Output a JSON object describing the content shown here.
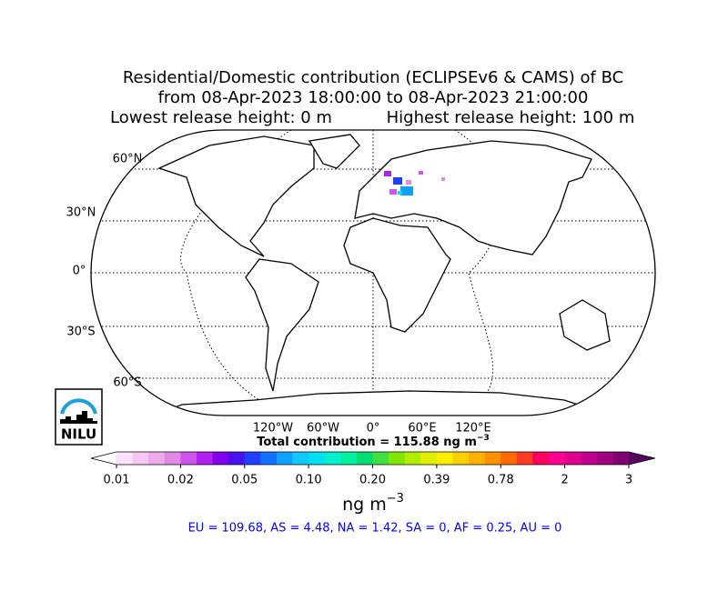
{
  "title": {
    "line1": "Residential/Domestic contribution (ECLIPSEv6 & CAMS) of BC",
    "line2": "from 08-Apr-2023 18:00:00 to 08-Apr-2023 21:00:00",
    "lowest": "Lowest release height: 0 m",
    "highest": "Highest release height: 100 m"
  },
  "map": {
    "lat_labels": [
      "60°N",
      "30°N",
      "0°",
      "30°S",
      "60°S"
    ],
    "lon_labels": [
      "120°W",
      "60°W",
      "0°",
      "60°E",
      "120°E"
    ]
  },
  "total": {
    "text": "Total contribution = 115.88 ng m",
    "exponent": "−3"
  },
  "colorbar": {
    "tick_labels": [
      "0.01",
      "0.02",
      "0.05",
      "0.10",
      "0.20",
      "0.39",
      "0.78",
      "2",
      "3"
    ],
    "colors": [
      "#fde0fd",
      "#f6c6f6",
      "#eeaaee",
      "#e08ae6",
      "#cc55ee",
      "#b020ee",
      "#8000ee",
      "#4b10f0",
      "#2040ff",
      "#1070ff",
      "#10a0ff",
      "#10c8ff",
      "#00e0f0",
      "#00f0d0",
      "#00f0a0",
      "#00e070",
      "#40e040",
      "#80e800",
      "#b0f000",
      "#e0f000",
      "#ffee00",
      "#ffd000",
      "#ffb000",
      "#ff9000",
      "#ff6a00",
      "#ff3a20",
      "#ff0060",
      "#ff0090",
      "#e00090",
      "#c00090",
      "#a00080",
      "#800070"
    ],
    "under_color": "#ffffff",
    "over_color": "#5a0060",
    "unit": "ng m",
    "unit_exponent": "−3"
  },
  "regions": "EU = 109.68,  AS = 4.48,  NA = 1.42,  SA = 0,  AF = 0.25,  AU = 0",
  "logo": "NILU"
}
